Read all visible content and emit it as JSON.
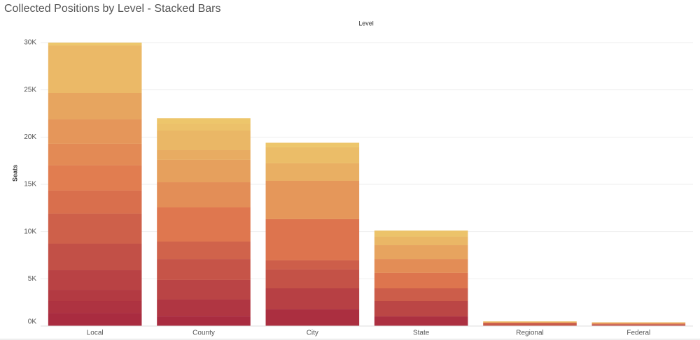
{
  "chart_data": {
    "type": "stacked_bar",
    "title": "Collected Positions by Level - Stacked Bars",
    "header": "Level",
    "y_label": "Seats",
    "categories": [
      "Local",
      "County",
      "City",
      "State",
      "Regional",
      "Federal"
    ],
    "segments": [
      [
        1400,
        1260,
        1180,
        2070,
        2810,
        3180,
        2440,
        2660,
        2290,
        2580,
        2810,
        5020,
        300
      ],
      [
        1030,
        1780,
        2070,
        2210,
        1850,
        3620,
        2660,
        2370,
        1030,
        2070,
        740,
        570
      ],
      [
        1770,
        2220,
        2000,
        960,
        4360,
        4060,
        1850,
        1700,
        480
      ],
      [
        1030,
        1630,
        1330,
        1630,
        1470,
        1480,
        890,
        640
      ],
      [
        300,
        150,
        50
      ],
      [
        200,
        120,
        80
      ]
    ],
    "color_scale": [
      "#a6283f",
      "#e0794f",
      "#edc86c"
    ],
    "ylim": [
      0,
      30000
    ],
    "yticks": [
      {
        "value": 0,
        "label": "0K"
      },
      {
        "value": 5000,
        "label": "5K"
      },
      {
        "value": 10000,
        "label": "10K"
      },
      {
        "value": 15000,
        "label": "15K"
      },
      {
        "value": 20000,
        "label": "20K"
      },
      {
        "value": 25000,
        "label": "25K"
      },
      {
        "value": 30000,
        "label": "30K"
      }
    ],
    "grid": true
  }
}
